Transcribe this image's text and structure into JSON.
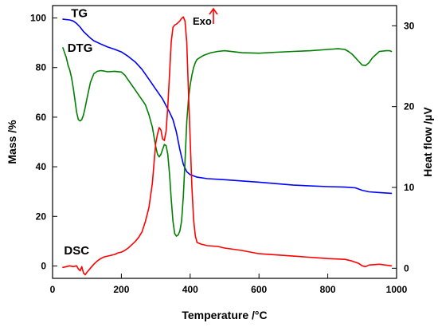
{
  "chart_data": {
    "type": "line",
    "title": "",
    "xlabel": "Temperature /°C",
    "ylabel_left": "Mass /%",
    "ylabel_right": "Heat flow /µV",
    "xlim": [
      0,
      1000
    ],
    "ylim_left": [
      -5,
      105
    ],
    "ylim_right": [
      -1.25,
      32.5
    ],
    "xticks": [
      0,
      200,
      400,
      600,
      800,
      1000
    ],
    "yticks_left": [
      0,
      20,
      40,
      60,
      80,
      100
    ],
    "yticks_right": [
      0,
      10,
      20,
      30
    ],
    "grid": false,
    "legend": "none",
    "annotations": {
      "exo_label": "Exo",
      "exo_arrow_color": "#ff0000"
    },
    "series": [
      {
        "name": "TG",
        "axis": "left",
        "color": "#0000ff",
        "label_at": [
          78,
          102
        ],
        "x": [
          30,
          50,
          60,
          70,
          80,
          90,
          100,
          110,
          120,
          140,
          160,
          180,
          200,
          220,
          240,
          260,
          280,
          300,
          320,
          340,
          350,
          360,
          370,
          380,
          390,
          400,
          420,
          450,
          500,
          600,
          700,
          800,
          850,
          880,
          900,
          920,
          950,
          985
        ],
        "y": [
          99.5,
          99.2,
          98.8,
          97.8,
          96.3,
          94.5,
          93.2,
          91.9,
          90.8,
          89.5,
          88.3,
          87.4,
          86.3,
          84.5,
          82.3,
          79.3,
          75.3,
          71.3,
          67.3,
          62.0,
          59.0,
          54.0,
          47.0,
          41.0,
          38.0,
          36.8,
          35.8,
          35.2,
          34.8,
          33.8,
          32.6,
          32.0,
          31.8,
          31.5,
          30.5,
          29.9,
          29.6,
          29.3
        ]
      },
      {
        "name": "DTG",
        "axis": "left",
        "color": "#008000",
        "label_at": [
          80,
          88
        ],
        "x": [
          30,
          35,
          40,
          45,
          50,
          55,
          60,
          65,
          70,
          75,
          80,
          85,
          90,
          95,
          100,
          110,
          120,
          130,
          140,
          150,
          160,
          180,
          200,
          210,
          220,
          230,
          240,
          250,
          260,
          270,
          280,
          290,
          300,
          305,
          310,
          315,
          320,
          325,
          330,
          335,
          340,
          345,
          350,
          355,
          360,
          365,
          370,
          375,
          380,
          385,
          390,
          395,
          400,
          405,
          410,
          415,
          420,
          430,
          440,
          460,
          480,
          500,
          550,
          600,
          650,
          700,
          750,
          800,
          830,
          850,
          860,
          870,
          880,
          890,
          900,
          910,
          920,
          930,
          950,
          970,
          980,
          985
        ],
        "y": [
          88,
          86,
          84,
          81,
          79,
          76,
          72,
          67,
          62,
          59,
          58.5,
          59,
          61,
          64,
          67.5,
          74,
          77.5,
          78.5,
          78.8,
          78.6,
          78.3,
          78.5,
          78.2,
          77,
          75,
          73,
          71,
          69,
          67,
          65,
          61,
          56,
          48,
          45,
          44,
          45,
          47,
          49,
          48.5,
          45,
          37,
          27,
          18,
          13,
          12,
          12.5,
          14,
          18,
          28,
          42,
          58,
          67,
          73,
          77,
          80,
          82,
          83.3,
          84.2,
          85,
          86,
          86.5,
          86.8,
          86,
          85.8,
          86.2,
          86.5,
          86.8,
          87.3,
          87.6,
          87.3,
          86.5,
          85.5,
          84,
          82.5,
          81,
          80.8,
          82,
          84,
          86.5,
          86.8,
          86.8,
          86.5
        ]
      },
      {
        "name": "DSC",
        "axis": "right",
        "color": "#ff0000",
        "label_at": [
          70,
          2.2
        ],
        "x": [
          30,
          40,
          50,
          60,
          70,
          75,
          80,
          85,
          90,
          95,
          100,
          110,
          120,
          130,
          140,
          150,
          160,
          170,
          180,
          190,
          200,
          210,
          220,
          230,
          240,
          250,
          260,
          270,
          280,
          290,
          295,
          300,
          305,
          310,
          315,
          320,
          325,
          330,
          335,
          340,
          345,
          350,
          355,
          360,
          365,
          370,
          375,
          380,
          385,
          390,
          395,
          400,
          405,
          410,
          415,
          420,
          430,
          450,
          480,
          500,
          550,
          600,
          700,
          800,
          850,
          870,
          890,
          900,
          910,
          920,
          950,
          985
        ],
        "y": [
          0.1,
          0.2,
          0.3,
          0.2,
          0.3,
          -0.1,
          -0.3,
          0.2,
          -0.6,
          -0.8,
          -0.5,
          0.0,
          0.5,
          0.9,
          1.2,
          1.4,
          1.5,
          1.6,
          1.7,
          1.9,
          2.0,
          2.2,
          2.5,
          2.9,
          3.3,
          3.8,
          4.5,
          5.8,
          7.5,
          10.5,
          13.0,
          15.5,
          16.6,
          17.4,
          17.1,
          16.0,
          15.8,
          17.0,
          20.0,
          24.0,
          28.0,
          29.8,
          30.1,
          30.2,
          30.4,
          30.6,
          30.9,
          31.1,
          30.6,
          28.0,
          22.0,
          16.0,
          10.0,
          6.0,
          4.0,
          3.2,
          3.0,
          2.8,
          2.7,
          2.5,
          2.2,
          1.8,
          1.5,
          1.2,
          1.1,
          0.9,
          0.6,
          0.3,
          0.2,
          0.4,
          0.5,
          0.3
        ]
      }
    ]
  }
}
